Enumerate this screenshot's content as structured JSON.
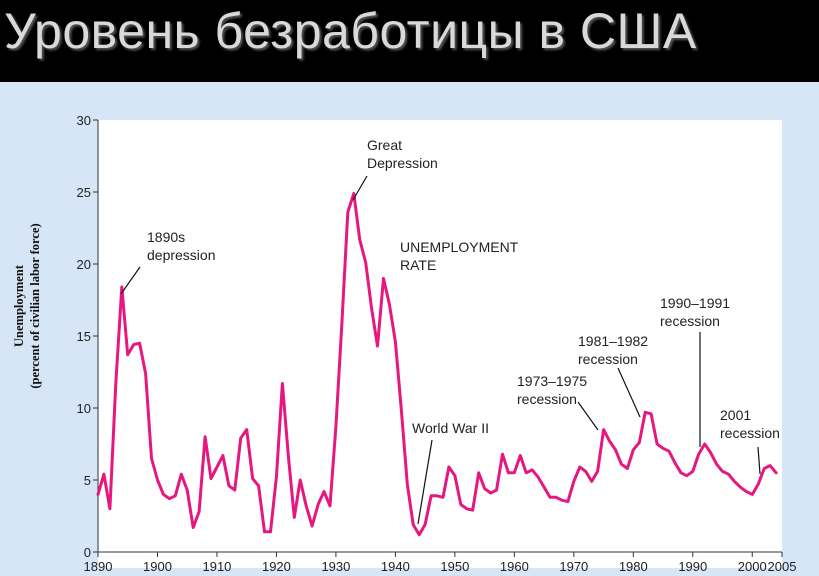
{
  "slide": {
    "title": "Уровень безработицы в США"
  },
  "colors": {
    "series": "#e6187f",
    "plot_background": "#ffffff",
    "panel_background": "#d6e6f6",
    "slide_background": "#000000"
  },
  "chart_data": {
    "type": "line",
    "title": "",
    "ylabel_line1": "Unemployment",
    "ylabel_line2": "(percent of civilian labor force)",
    "xlabel": "",
    "xlim": [
      1890,
      2005
    ],
    "ylim": [
      0,
      30
    ],
    "xticks": [
      1890,
      1900,
      1910,
      1920,
      1930,
      1940,
      1950,
      1960,
      1970,
      1980,
      1990,
      2000,
      2005
    ],
    "yticks": [
      0,
      5,
      10,
      15,
      20,
      25,
      30
    ],
    "grid": false,
    "series": [
      {
        "name": "UNEMPLOYMENT RATE",
        "x": [
          1890,
          1891,
          1892,
          1893,
          1894,
          1895,
          1896,
          1897,
          1898,
          1899,
          1900,
          1901,
          1902,
          1903,
          1904,
          1905,
          1906,
          1907,
          1908,
          1909,
          1910,
          1911,
          1912,
          1913,
          1914,
          1915,
          1916,
          1917,
          1918,
          1919,
          1920,
          1921,
          1922,
          1923,
          1924,
          1925,
          1926,
          1927,
          1928,
          1929,
          1930,
          1931,
          1932,
          1933,
          1934,
          1935,
          1936,
          1937,
          1938,
          1939,
          1940,
          1941,
          1942,
          1943,
          1944,
          1945,
          1946,
          1947,
          1948,
          1949,
          1950,
          1951,
          1952,
          1953,
          1954,
          1955,
          1956,
          1957,
          1958,
          1959,
          1960,
          1961,
          1962,
          1963,
          1964,
          1965,
          1966,
          1967,
          1968,
          1969,
          1970,
          1971,
          1972,
          1973,
          1974,
          1975,
          1976,
          1977,
          1978,
          1979,
          1980,
          1981,
          1982,
          1983,
          1984,
          1985,
          1986,
          1987,
          1988,
          1989,
          1990,
          1991,
          1992,
          1993,
          1994,
          1995,
          1996,
          1997,
          1998,
          1999,
          2000,
          2001,
          2002,
          2003,
          2004
        ],
        "y": [
          4.0,
          5.4,
          3.0,
          11.7,
          18.4,
          13.7,
          14.4,
          14.5,
          12.4,
          6.5,
          5.0,
          4.0,
          3.7,
          3.9,
          5.4,
          4.3,
          1.7,
          2.8,
          8.0,
          5.1,
          5.9,
          6.7,
          4.6,
          4.3,
          7.9,
          8.5,
          5.1,
          4.6,
          1.4,
          1.4,
          5.2,
          11.7,
          6.7,
          2.4,
          5.0,
          3.2,
          1.8,
          3.3,
          4.2,
          3.2,
          8.7,
          15.9,
          23.6,
          24.9,
          21.7,
          20.1,
          16.9,
          14.3,
          19.0,
          17.2,
          14.6,
          9.9,
          4.7,
          1.9,
          1.2,
          1.9,
          3.9,
          3.9,
          3.8,
          5.9,
          5.3,
          3.3,
          3.0,
          2.9,
          5.5,
          4.4,
          4.1,
          4.3,
          6.8,
          5.5,
          5.5,
          6.7,
          5.5,
          5.7,
          5.2,
          4.5,
          3.8,
          3.8,
          3.6,
          3.5,
          4.9,
          5.9,
          5.6,
          4.9,
          5.6,
          8.5,
          7.7,
          7.1,
          6.1,
          5.8,
          7.1,
          7.6,
          9.7,
          9.6,
          7.5,
          7.2,
          7.0,
          6.2,
          5.5,
          5.3,
          5.6,
          6.8,
          7.5,
          6.9,
          6.1,
          5.6,
          5.4,
          4.9,
          4.5,
          4.2,
          4.0,
          4.7,
          5.8,
          6.0,
          5.5
        ]
      }
    ],
    "annotations": [
      {
        "lines": [
          "1890s",
          "depression"
        ],
        "x": 1894,
        "y": 18.4
      },
      {
        "lines": [
          "Great",
          "Depression"
        ],
        "x": 1933,
        "y": 24.9
      },
      {
        "lines": [
          "UNEMPLOYMENT",
          "RATE"
        ]
      },
      {
        "lines": [
          "World War II"
        ],
        "x": 1944,
        "y": 1.2
      },
      {
        "lines": [
          "1973–1975",
          "recession"
        ],
        "x": 1975,
        "y": 8.5
      },
      {
        "lines": [
          "1981–1982",
          "recession"
        ],
        "x": 1982,
        "y": 9.7
      },
      {
        "lines": [
          "1990–1991",
          "recession"
        ],
        "x": 1991,
        "y": 7.5
      },
      {
        "lines": [
          "2001",
          "recession"
        ],
        "x": 2002,
        "y": 5.8
      }
    ]
  }
}
